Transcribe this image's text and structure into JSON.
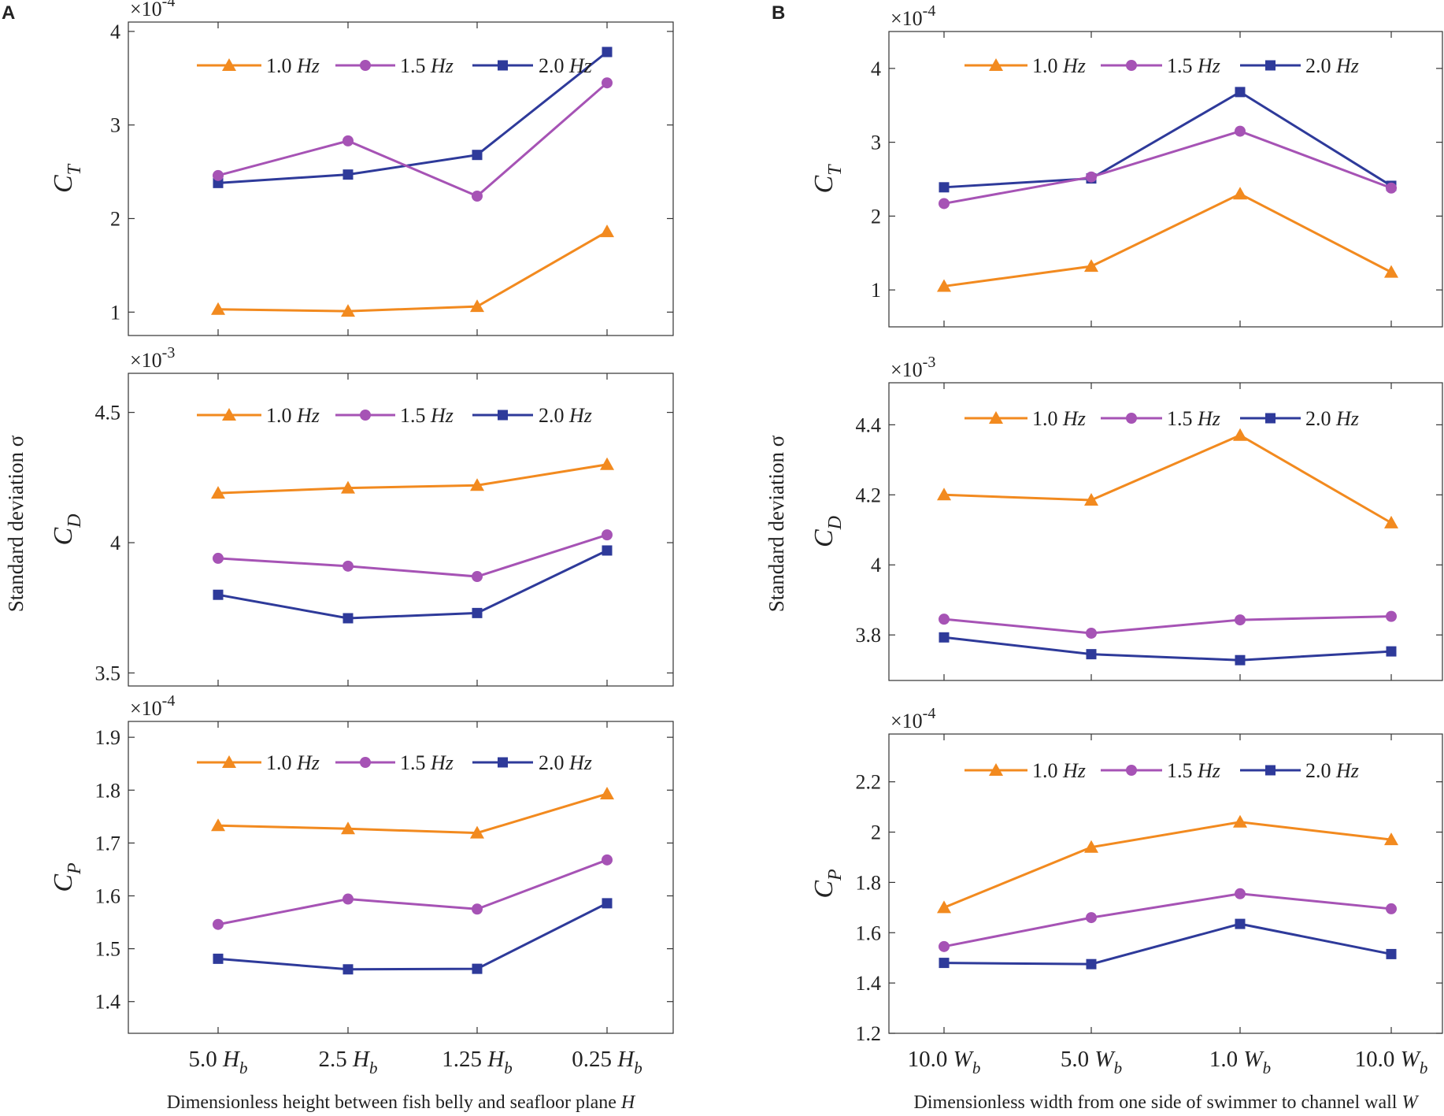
{
  "panels": [
    {
      "letter": "A",
      "xlabel": "Dimensionless  height  between fish belly and seafloor plane H",
      "ylabel_shared": "Standard deviation σ",
      "x_tick_labels": [
        "5.0 H_b",
        "2.5 H_b",
        "1.25 H_b",
        "0.25 H_b"
      ]
    },
    {
      "letter": "B",
      "xlabel": "Dimensionless width from one side of swimmer to channel wall W",
      "ylabel_shared": "Standard deviation σ",
      "x_tick_labels": [
        "10.0 W_b",
        "5.0 W_b",
        "1.0 W_b",
        "10.0 W_b"
      ]
    }
  ],
  "legend": [
    {
      "label": "1.0 Hz",
      "color": "#F28A1F",
      "marker": "triangle"
    },
    {
      "label": "1.5 Hz",
      "color": "#A653B5",
      "marker": "circle"
    },
    {
      "label": "2.0 Hz",
      "color": "#2E3A9A",
      "marker": "square"
    }
  ],
  "chart_data": [
    {
      "id": "A-CT",
      "panel": "A",
      "type": "line",
      "ylabel": "C_T",
      "multiplier": "×10^-4",
      "categories": [
        "5.0 H_b",
        "2.5 H_b",
        "1.25 H_b",
        "0.25 H_b"
      ],
      "ylim": [
        0.75,
        4.1
      ],
      "yticks": [
        1,
        2,
        3,
        4
      ],
      "ytick_labels": [
        "1",
        "2",
        "3",
        "4"
      ],
      "series": [
        {
          "name": "1.0 Hz",
          "values": [
            1.03,
            1.01,
            1.06,
            1.86
          ]
        },
        {
          "name": "1.5 Hz",
          "values": [
            2.46,
            2.83,
            2.24,
            3.45
          ]
        },
        {
          "name": "2.0 Hz",
          "values": [
            2.38,
            2.47,
            2.68,
            3.78
          ]
        }
      ]
    },
    {
      "id": "A-CD",
      "panel": "A",
      "type": "line",
      "ylabel": "C_D",
      "multiplier": "×10^-3",
      "categories": [
        "5.0 H_b",
        "2.5 H_b",
        "1.25 H_b",
        "0.25 H_b"
      ],
      "ylim": [
        3.45,
        4.65
      ],
      "yticks": [
        3.5,
        4,
        4.5
      ],
      "ytick_labels": [
        "3.5",
        "4",
        "4.5"
      ],
      "series": [
        {
          "name": "1.0 Hz",
          "values": [
            4.19,
            4.21,
            4.22,
            4.3
          ]
        },
        {
          "name": "1.5 Hz",
          "values": [
            3.94,
            3.91,
            3.87,
            4.03
          ]
        },
        {
          "name": "2.0 Hz",
          "values": [
            3.8,
            3.71,
            3.73,
            3.97
          ]
        }
      ]
    },
    {
      "id": "A-CP",
      "panel": "A",
      "type": "line",
      "ylabel": "C_P",
      "multiplier": "×10^-4",
      "categories": [
        "5.0 H_b",
        "2.5 H_b",
        "1.25 H_b",
        "0.25 H_b"
      ],
      "ylim": [
        1.34,
        1.93
      ],
      "yticks": [
        1.4,
        1.5,
        1.6,
        1.7,
        1.8,
        1.9
      ],
      "ytick_labels": [
        "1.4",
        "1.5",
        "1.6",
        "1.7",
        "1.8",
        "1.9"
      ],
      "series": [
        {
          "name": "1.0 Hz",
          "values": [
            1.733,
            1.727,
            1.719,
            1.793
          ]
        },
        {
          "name": "1.5 Hz",
          "values": [
            1.546,
            1.594,
            1.575,
            1.668
          ]
        },
        {
          "name": "2.0 Hz",
          "values": [
            1.481,
            1.461,
            1.462,
            1.586
          ]
        }
      ]
    },
    {
      "id": "B-CT",
      "panel": "B",
      "type": "line",
      "ylabel": "C_T",
      "multiplier": "×10^-4",
      "categories": [
        "10.0 W_b",
        "5.0 W_b",
        "1.0 W_b",
        "10.0 W_b"
      ],
      "ylim": [
        0.5,
        4.5
      ],
      "yticks": [
        1,
        2,
        3,
        4
      ],
      "ytick_labels": [
        "1",
        "2",
        "3",
        "4"
      ],
      "series": [
        {
          "name": "1.0 Hz",
          "values": [
            1.05,
            1.32,
            2.3,
            1.24
          ]
        },
        {
          "name": "1.5 Hz",
          "values": [
            2.17,
            2.53,
            3.15,
            2.38
          ]
        },
        {
          "name": "2.0 Hz",
          "values": [
            2.39,
            2.51,
            3.68,
            2.41
          ]
        }
      ]
    },
    {
      "id": "B-CD",
      "panel": "B",
      "type": "line",
      "ylabel": "C_D",
      "multiplier": "×10^-3",
      "categories": [
        "10.0 W_b",
        "5.0 W_b",
        "1.0 W_b",
        "10.0 W_b"
      ],
      "ylim": [
        3.67,
        4.52
      ],
      "yticks": [
        3.8,
        4,
        4.2,
        4.4
      ],
      "ytick_labels": [
        "3.8",
        "4",
        "4.2",
        "4.4"
      ],
      "series": [
        {
          "name": "1.0 Hz",
          "values": [
            4.2,
            4.185,
            4.37,
            4.12
          ]
        },
        {
          "name": "1.5 Hz",
          "values": [
            3.845,
            3.805,
            3.843,
            3.853
          ]
        },
        {
          "name": "2.0 Hz",
          "values": [
            3.793,
            3.745,
            3.728,
            3.753
          ]
        }
      ]
    },
    {
      "id": "B-CP",
      "panel": "B",
      "type": "line",
      "ylabel": "C_P",
      "multiplier": "×10^-4",
      "categories": [
        "10.0 W_b",
        "5.0 W_b",
        "1.0 W_b",
        "10.0 W_b"
      ],
      "ylim": [
        1.2,
        2.39
      ],
      "yticks": [
        1.2,
        1.4,
        1.6,
        1.8,
        2,
        2.2
      ],
      "ytick_labels": [
        "1.2",
        "1.4",
        "1.6",
        "1.8",
        "2",
        "2.2"
      ],
      "series": [
        {
          "name": "1.0 Hz",
          "values": [
            1.7,
            1.94,
            2.04,
            1.97
          ]
        },
        {
          "name": "1.5 Hz",
          "values": [
            1.545,
            1.66,
            1.755,
            1.695
          ]
        },
        {
          "name": "2.0 Hz",
          "values": [
            1.48,
            1.475,
            1.635,
            1.515
          ]
        }
      ]
    }
  ]
}
